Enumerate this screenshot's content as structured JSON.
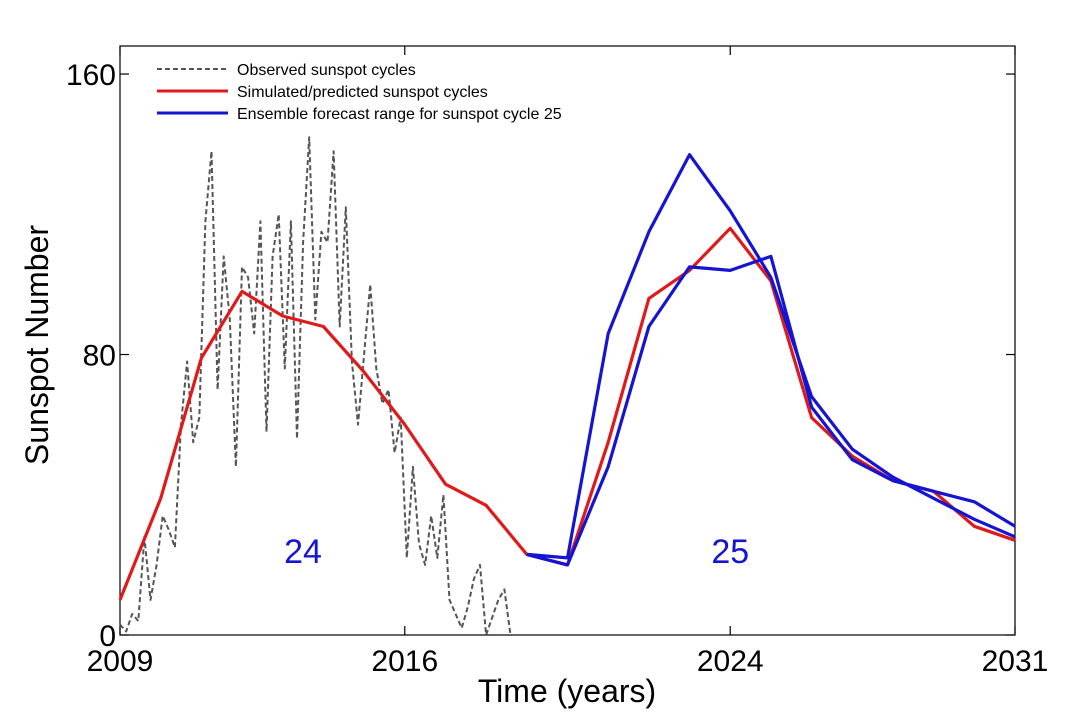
{
  "chart_data": {
    "type": "line",
    "xlabel": "Time (years)",
    "ylabel": "Sunspot Number",
    "xlim": [
      2009,
      2031
    ],
    "ylim": [
      0,
      168
    ],
    "xticks": [
      2009,
      2016,
      2024,
      2031
    ],
    "yticks": [
      0,
      80,
      160
    ],
    "grid": false,
    "legend_position": "top-left",
    "annotations": [
      {
        "text": "24",
        "x": 2013.5,
        "y": 24
      },
      {
        "text": "25",
        "x": 2024.0,
        "y": 24
      }
    ],
    "series": [
      {
        "name": "Observed sunspot cycles",
        "color": "#555555",
        "style": "dashed",
        "x": [
          2009.0,
          2009.15,
          2009.3,
          2009.45,
          2009.6,
          2009.75,
          2009.9,
          2010.05,
          2010.2,
          2010.35,
          2010.5,
          2010.65,
          2010.8,
          2010.95,
          2011.1,
          2011.25,
          2011.4,
          2011.55,
          2011.7,
          2011.85,
          2012.0,
          2012.15,
          2012.3,
          2012.45,
          2012.6,
          2012.75,
          2012.9,
          2013.05,
          2013.2,
          2013.35,
          2013.5,
          2013.65,
          2013.8,
          2013.95,
          2014.1,
          2014.25,
          2014.4,
          2014.55,
          2014.7,
          2014.85,
          2015.0,
          2015.15,
          2015.3,
          2015.45,
          2015.6,
          2015.75,
          2015.9,
          2016.05,
          2016.2,
          2016.35,
          2016.5,
          2016.65,
          2016.8,
          2016.95,
          2017.1,
          2017.25,
          2017.4,
          2017.55,
          2017.7,
          2017.85,
          2018.0,
          2018.15,
          2018.3,
          2018.45,
          2018.6
        ],
        "y": [
          3,
          1,
          6,
          4,
          28,
          10,
          20,
          34,
          30,
          25,
          60,
          78,
          55,
          62,
          118,
          138,
          70,
          108,
          90,
          48,
          105,
          102,
          86,
          118,
          58,
          108,
          120,
          76,
          118,
          56,
          112,
          142,
          90,
          115,
          112,
          138,
          88,
          122,
          78,
          60,
          80,
          100,
          76,
          66,
          70,
          52,
          62,
          22,
          48,
          26,
          20,
          34,
          22,
          40,
          10,
          6,
          2,
          8,
          16,
          20,
          0,
          5,
          10,
          13,
          0
        ]
      },
      {
        "name": "Simulated/predicted sunspot cycles",
        "color": "#e01a1a",
        "style": "solid",
        "x": [
          2009.0,
          2010.0,
          2011.0,
          2012.0,
          2013.0,
          2014.0,
          2015.0,
          2016.0,
          2017.0,
          2018.0,
          2019.0,
          2020.0,
          2021.0,
          2022.0,
          2023.0,
          2024.0,
          2025.0,
          2026.0,
          2027.0,
          2028.0,
          2029.0,
          2030.0,
          2031.0
        ],
        "y": [
          10,
          39,
          79,
          98,
          91,
          88,
          75,
          60,
          43,
          37,
          23,
          20,
          55,
          96,
          104,
          116,
          101,
          62,
          51,
          44,
          41,
          31,
          27
        ]
      },
      {
        "name": "Ensemble forecast range for sunspot cycle 25",
        "color": "#1414d2",
        "style": "solid",
        "x": [
          2019.0,
          2020.0,
          2021.0,
          2022.0,
          2023.0,
          2024.0,
          2025.0,
          2026.0,
          2027.0,
          2028.0,
          2029.0,
          2030.0,
          2031.0
        ],
        "y": [
          23,
          22,
          86,
          115,
          137,
          121,
          102,
          68,
          53,
          45,
          39,
          33,
          28
        ]
      },
      {
        "name": "",
        "color": "#1414d2",
        "style": "solid",
        "x": [
          2019.0,
          2020.0,
          2021.0,
          2022.0,
          2023.0,
          2024.0,
          2025.0,
          2026.0,
          2027.0,
          2028.0,
          2029.0,
          2030.0,
          2031.0
        ],
        "y": [
          23,
          20,
          48,
          88,
          105,
          104,
          108,
          65,
          50,
          44,
          41,
          38,
          31
        ]
      }
    ]
  }
}
